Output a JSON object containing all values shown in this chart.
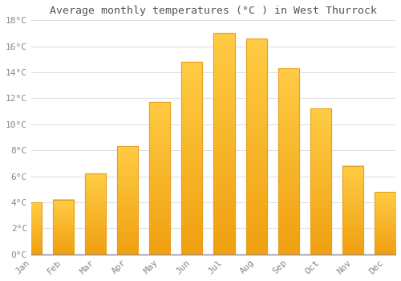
{
  "title": "Average monthly temperatures (°C ) in West Thurrock",
  "months": [
    "Jan",
    "Feb",
    "Mar",
    "Apr",
    "May",
    "Jun",
    "Jul",
    "Aug",
    "Sep",
    "Oct",
    "Nov",
    "Dec"
  ],
  "values": [
    4.0,
    4.2,
    6.2,
    8.3,
    11.7,
    14.8,
    17.0,
    16.6,
    14.3,
    11.2,
    6.8,
    4.8
  ],
  "bar_color_top": "#FFCC44",
  "bar_color_bottom": "#F0A010",
  "bar_edge_color": "#E8A020",
  "background_color": "#FFFFFF",
  "grid_color": "#DDDDDD",
  "ylim": [
    0,
    18
  ],
  "yticks": [
    0,
    2,
    4,
    6,
    8,
    10,
    12,
    14,
    16,
    18
  ],
  "title_fontsize": 9.5,
  "tick_fontsize": 8,
  "tick_label_color": "#888888",
  "font_family": "monospace"
}
